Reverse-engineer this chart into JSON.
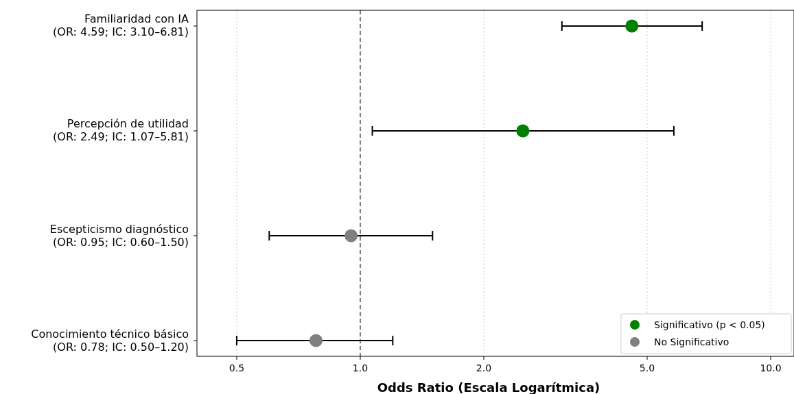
{
  "chart_data": {
    "type": "scatter",
    "orientation": "horizontal",
    "log": "x",
    "marker": "circle",
    "grid": "x",
    "legend": "bottom right",
    "xlabel": "Odds Ratio (Escala Logarítmica)",
    "categories": [
      "Familiaridad con IA\n(OR: 4.59; IC: 3.10–6.81)",
      "Percepción de utilidad\n(OR: 2.49; IC: 1.07–5.81)",
      "Escepticismo diagnóstico\n(OR: 0.95; IC: 0.60–1.50)",
      "Conocimiento técnico básico\n(OR: 0.78; IC: 0.50–1.20)"
    ],
    "xlim": [
      0.4,
      11.4
    ],
    "xticks": [
      0.5,
      {
        "value": 1,
        "label": "1.0"
      },
      {
        "value": 2,
        "label": "2.0"
      },
      {
        "value": 5,
        "label": "5.0"
      },
      {
        "value": 10,
        "label": "10.0"
      }
    ],
    "series": [
      {
        "name": "Significativo (p < 0.05)",
        "color": "#008000",
        "values": [
          4.59,
          2.49,
          null,
          null
        ],
        "errors": [
          [
            3.1,
            6.81
          ],
          [
            1.07,
            5.81
          ],
          null,
          null
        ]
      },
      {
        "name": "No Significativo",
        "color": "#808080",
        "values": [
          null,
          null,
          0.95,
          0.78
        ],
        "errors": [
          null,
          null,
          [
            0.6,
            1.5
          ],
          [
            0.5,
            1.2
          ]
        ]
      }
    ],
    "ref_lines": [
      {
        "axis": "x",
        "value": 1,
        "color": "#555555",
        "line_style": "dashed"
      }
    ]
  }
}
